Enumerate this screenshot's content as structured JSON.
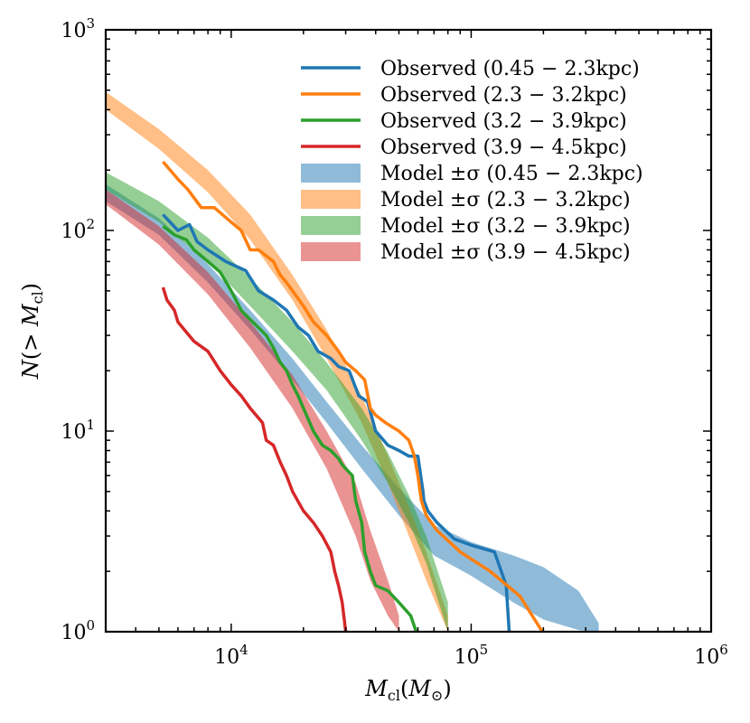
{
  "chart_data": {
    "type": "line",
    "title": "",
    "xlabel": "M_cl(M_⊙)",
    "ylabel": "N(> M_cl)",
    "xscale": "log",
    "yscale": "log",
    "xlim": [
      3000,
      1000000
    ],
    "ylim": [
      1,
      1000
    ],
    "x_ticks": [
      {
        "label_base": "10",
        "label_exp": "4",
        "value": 10000
      },
      {
        "label_base": "10",
        "label_exp": "5",
        "value": 100000
      },
      {
        "label_base": "10",
        "label_exp": "6",
        "value": 1000000
      }
    ],
    "y_ticks": [
      {
        "label_base": "10",
        "label_exp": "0",
        "value": 1
      },
      {
        "label_base": "10",
        "label_exp": "1",
        "value": 10
      },
      {
        "label_base": "10",
        "label_exp": "2",
        "value": 100
      },
      {
        "label_base": "10",
        "label_exp": "3",
        "value": 1000
      }
    ],
    "legend_position": "top-right",
    "series": [
      {
        "name": "Observed (0.45 − 2.3kpc)",
        "kind": "line",
        "color": "#1f77b4",
        "x": [
          5200,
          6000,
          6700,
          7200,
          8000,
          9500,
          11500,
          13000,
          15000,
          17000,
          19000,
          21000,
          23000,
          26000,
          28000,
          31000,
          34000,
          37000,
          40000,
          45000,
          50000,
          55000,
          60000,
          63000,
          63500,
          66000,
          72000,
          85000,
          100000,
          125000,
          140000,
          144000
        ],
        "y": [
          120,
          100,
          107,
          88,
          80,
          70,
          63,
          50,
          45,
          40,
          33,
          30,
          25,
          23,
          21,
          20,
          15,
          14,
          10,
          8.5,
          8,
          7.5,
          7.5,
          5,
          4.5,
          4,
          3.5,
          2.9,
          2.7,
          2.5,
          1.7,
          1
        ]
      },
      {
        "name": "Observed (2.3 − 3.2kpc)",
        "kind": "line",
        "color": "#ff7f0e",
        "x": [
          5200,
          6000,
          6600,
          7500,
          8500,
          10000,
          11000,
          12000,
          13000,
          15000,
          16000,
          17000,
          18000,
          20000,
          22000,
          25000,
          28000,
          30000,
          33000,
          36000,
          38000,
          40000,
          44000,
          50000,
          55000,
          58000,
          60000,
          62000,
          65000,
          72000,
          90000,
          120000,
          160000,
          198000
        ],
        "y": [
          220,
          180,
          160,
          130,
          130,
          110,
          100,
          80,
          80,
          70,
          60,
          55,
          50,
          42,
          35,
          30,
          25,
          22,
          20,
          18,
          13,
          12,
          11,
          10,
          9,
          7.5,
          6,
          4.5,
          3.8,
          3.2,
          2.5,
          2,
          1.5,
          1
        ]
      },
      {
        "name": "Observed (3.2 − 3.9kpc)",
        "kind": "line",
        "color": "#2ca02c",
        "x": [
          5200,
          5800,
          6500,
          7000,
          8000,
          9000,
          10000,
          11000,
          12000,
          14000,
          15000,
          16000,
          17000,
          18000,
          19000,
          20000,
          22000,
          24000,
          26000,
          28000,
          29000,
          30000,
          32000,
          33000,
          35000,
          36000,
          38000,
          40000,
          45000,
          50000,
          56000,
          59000
        ],
        "y": [
          105,
          95,
          90,
          80,
          70,
          62,
          50,
          40,
          36,
          30,
          26,
          22,
          20,
          17,
          15,
          13,
          10,
          8.5,
          8,
          7.3,
          6.8,
          6.5,
          6,
          4.5,
          3.5,
          2.5,
          2,
          1.7,
          1.6,
          1.4,
          1.2,
          1
        ]
      },
      {
        "name": "Observed (3.9 − 4.5kpc)",
        "kind": "line",
        "color": "#d62728",
        "x": [
          5200,
          5400,
          5800,
          6000,
          7000,
          8000,
          9000,
          10000,
          11000,
          12000,
          13500,
          14000,
          15000,
          16000,
          17000,
          18000,
          20000,
          22000,
          24000,
          26000,
          27000,
          28000,
          29000,
          30000
        ],
        "y": [
          52,
          45,
          40,
          35,
          28,
          25,
          20,
          17,
          15,
          13,
          11,
          9,
          8.5,
          7,
          6,
          5,
          4,
          3.5,
          3,
          2.5,
          2,
          1.7,
          1.4,
          1
        ]
      },
      {
        "name": "Model ±σ (0.45 − 2.3kpc)",
        "kind": "band",
        "color": "#1f77b4",
        "opacity": 0.5,
        "x": [
          3000,
          5000,
          8000,
          12000,
          18000,
          25000,
          35000,
          50000,
          70000,
          100000,
          150000,
          200000,
          280000,
          340000
        ],
        "y_low": [
          140,
          95,
          55,
          32,
          18,
          11,
          6.5,
          3.8,
          2.4,
          1.9,
          1.4,
          1.15,
          1.02,
          1
        ],
        "y_high": [
          170,
          115,
          68,
          40,
          23,
          14,
          8.5,
          5.2,
          3.4,
          2.8,
          2.4,
          2.1,
          1.6,
          1.1
        ]
      },
      {
        "name": "Model ±σ (2.3 − 3.2kpc)",
        "kind": "band",
        "color": "#ff7f0e",
        "opacity": 0.5,
        "x": [
          3000,
          5000,
          8000,
          12000,
          18000,
          25000,
          35000,
          45000,
          55000,
          65000,
          80000
        ],
        "y_low": [
          400,
          255,
          155,
          90,
          45,
          23,
          11,
          5.5,
          3,
          1.8,
          1
        ],
        "y_high": [
          490,
          320,
          200,
          120,
          60,
          32,
          15,
          7.5,
          4.2,
          2.5,
          1.2
        ]
      },
      {
        "name": "Model ±σ (3.2 − 3.9kpc)",
        "kind": "band",
        "color": "#2ca02c",
        "opacity": 0.5,
        "x": [
          3000,
          5000,
          8000,
          12000,
          18000,
          25000,
          35000,
          45000,
          55000,
          65000,
          80000
        ],
        "y_low": [
          160,
          110,
          70,
          42,
          25,
          16,
          9,
          5.5,
          3.5,
          2.2,
          1
        ],
        "y_high": [
          195,
          140,
          92,
          58,
          35,
          22,
          13,
          7.8,
          4.8,
          3,
          1.4
        ]
      },
      {
        "name": "Model ±σ (3.9 − 4.5kpc)",
        "kind": "band",
        "color": "#d62728",
        "opacity": 0.5,
        "x": [
          3000,
          5000,
          8000,
          12000,
          18000,
          25000,
          33000,
          38000,
          45000,
          50000
        ],
        "y_low": [
          135,
          85,
          48,
          26,
          13,
          6.5,
          3,
          1.8,
          1.2,
          1
        ],
        "y_high": [
          160,
          105,
          62,
          35,
          19,
          10,
          5.5,
          3.2,
          1.8,
          1.2
        ]
      }
    ]
  }
}
